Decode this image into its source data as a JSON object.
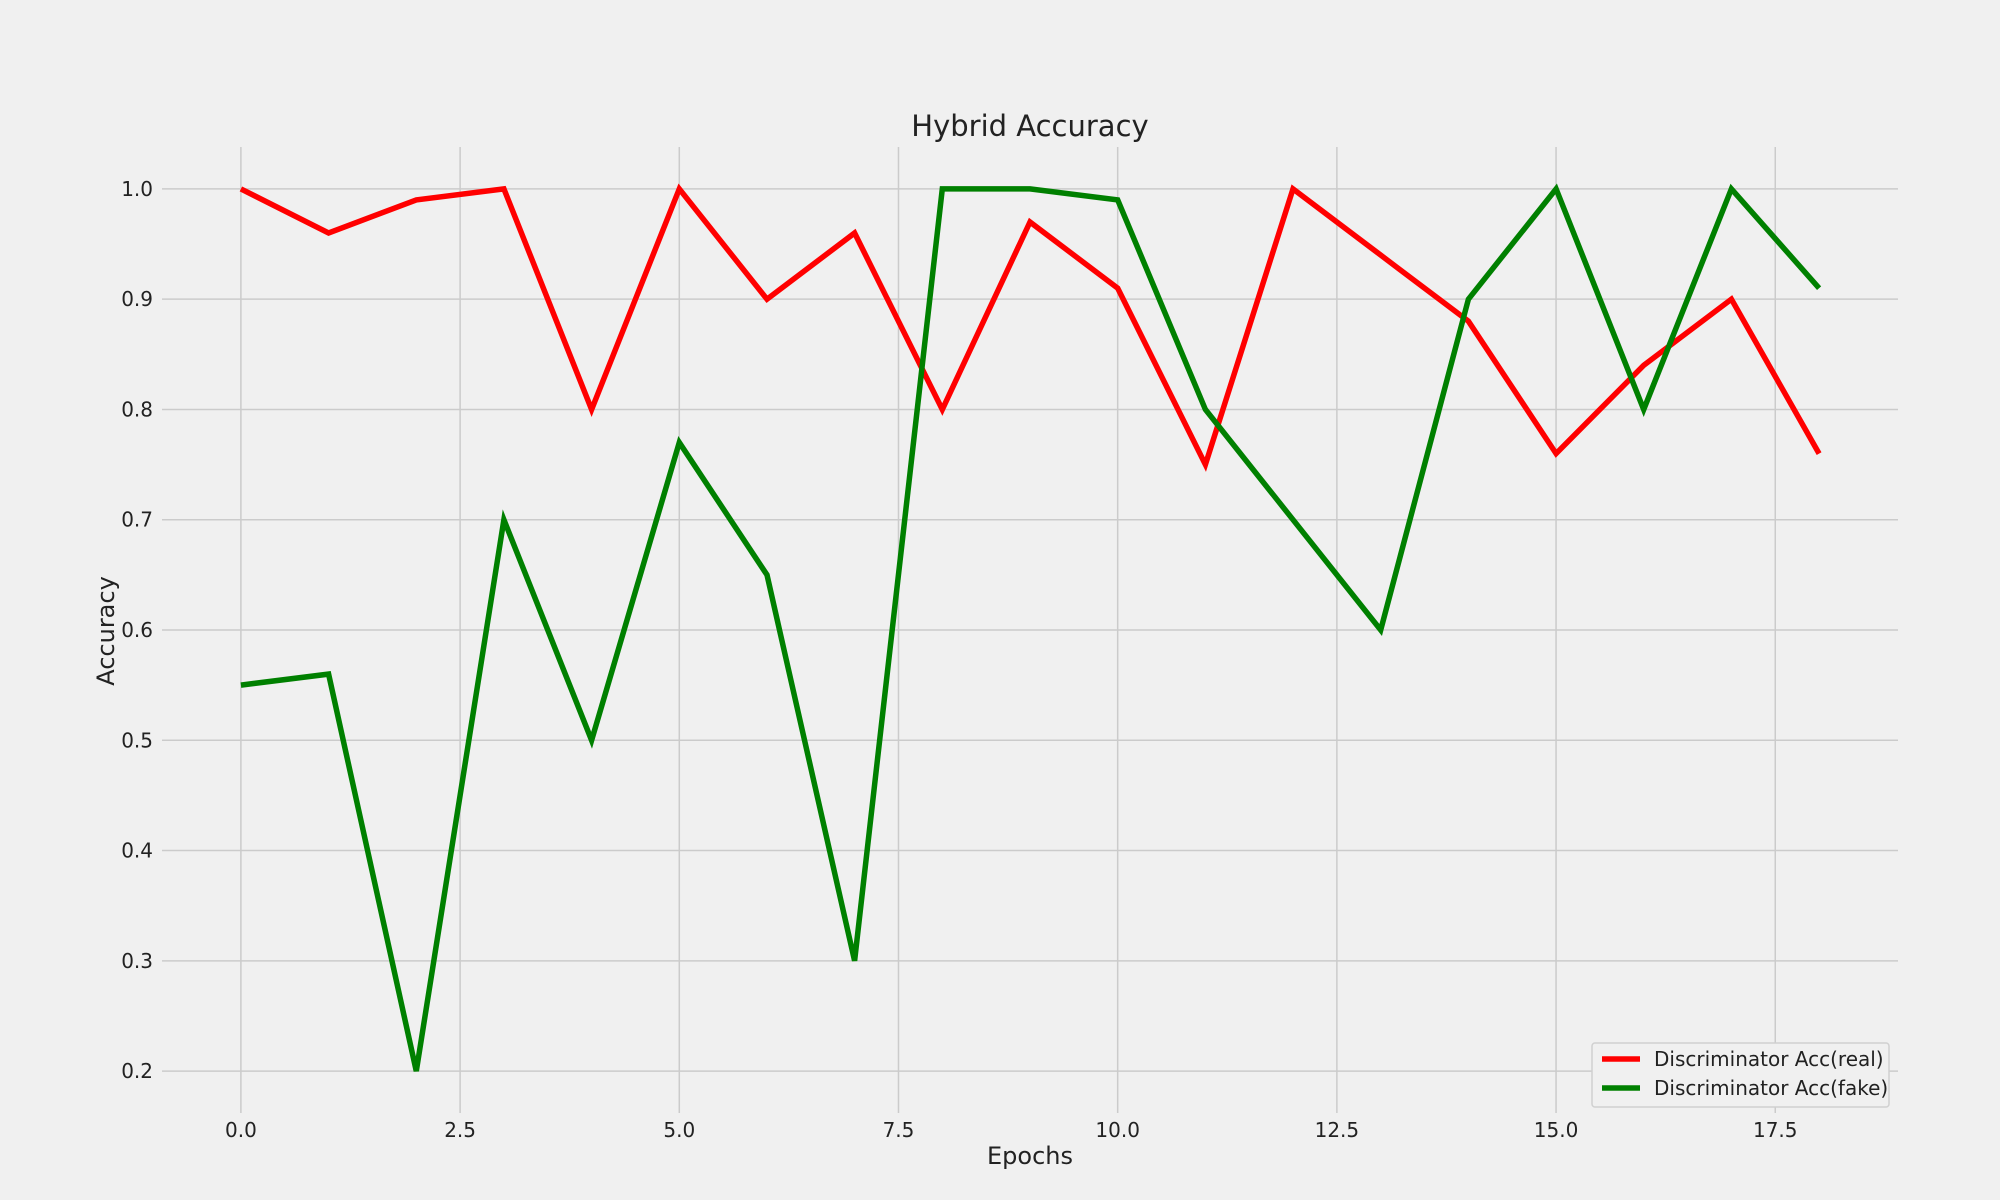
{
  "chart_data": {
    "type": "line",
    "title": "Hybrid Accuracy",
    "xlabel": "Epochs",
    "ylabel": "Accuracy",
    "x": [
      0,
      1,
      2,
      3,
      4,
      5,
      6,
      7,
      8,
      9,
      10,
      11,
      12,
      13,
      14,
      15,
      16,
      17,
      18
    ],
    "xlim": [
      -0.9,
      18.9
    ],
    "ylim": [
      0.162,
      1.038
    ],
    "xticks": [
      "0.0",
      "2.5",
      "5.0",
      "7.5",
      "10.0",
      "12.5",
      "15.0",
      "17.5"
    ],
    "xtick_values": [
      0,
      2.5,
      5,
      7.5,
      10,
      12.5,
      15,
      17.5
    ],
    "yticks": [
      "0.2",
      "0.3",
      "0.4",
      "0.5",
      "0.6",
      "0.7",
      "0.8",
      "0.9",
      "1.0"
    ],
    "ytick_values": [
      0.2,
      0.3,
      0.4,
      0.5,
      0.6,
      0.7,
      0.8,
      0.9,
      1.0
    ],
    "grid": true,
    "legend_position": "lower-right",
    "series": [
      {
        "name": "Discriminator Acc(real)",
        "color": "#ff0000",
        "values": [
          1.0,
          0.96,
          0.99,
          1.0,
          0.8,
          1.0,
          0.9,
          0.96,
          0.8,
          0.97,
          0.91,
          0.75,
          1.0,
          0.94,
          0.88,
          0.76,
          0.84,
          0.9,
          0.76
        ]
      },
      {
        "name": "Discriminator Acc(fake)",
        "color": "#008000",
        "values": [
          0.55,
          0.56,
          0.2,
          0.7,
          0.5,
          0.77,
          0.65,
          0.3,
          1.0,
          1.0,
          0.99,
          0.8,
          0.7,
          0.6,
          0.9,
          1.0,
          0.8,
          1.0,
          0.91
        ]
      }
    ]
  }
}
